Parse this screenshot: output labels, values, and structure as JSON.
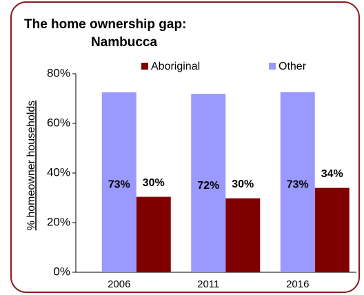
{
  "chart_data": {
    "type": "bar",
    "title": [
      "The home ownership gap:",
      "Nambucca"
    ],
    "y_label": "% homeowner households",
    "categories": [
      "2006",
      "2011",
      "2016"
    ],
    "series": [
      {
        "name": "Aboriginal",
        "color": "#800000",
        "values": [
          30.4,
          29.8,
          34.0
        ],
        "value_labels": [
          "30%",
          "30%",
          "34%"
        ]
      },
      {
        "name": "Other",
        "color": "#9999ff",
        "values": [
          72.5,
          71.9,
          72.6
        ],
        "value_labels": [
          "73%",
          "72%",
          "73%"
        ]
      }
    ],
    "ylim": [
      0,
      80
    ],
    "yticks": [
      {
        "value": 0,
        "label": "0%"
      },
      {
        "value": 20,
        "label": "20%"
      },
      {
        "value": 40,
        "label": "40%"
      },
      {
        "value": 60,
        "label": "60%"
      },
      {
        "value": 80,
        "label": "80%"
      }
    ],
    "grid": false
  }
}
